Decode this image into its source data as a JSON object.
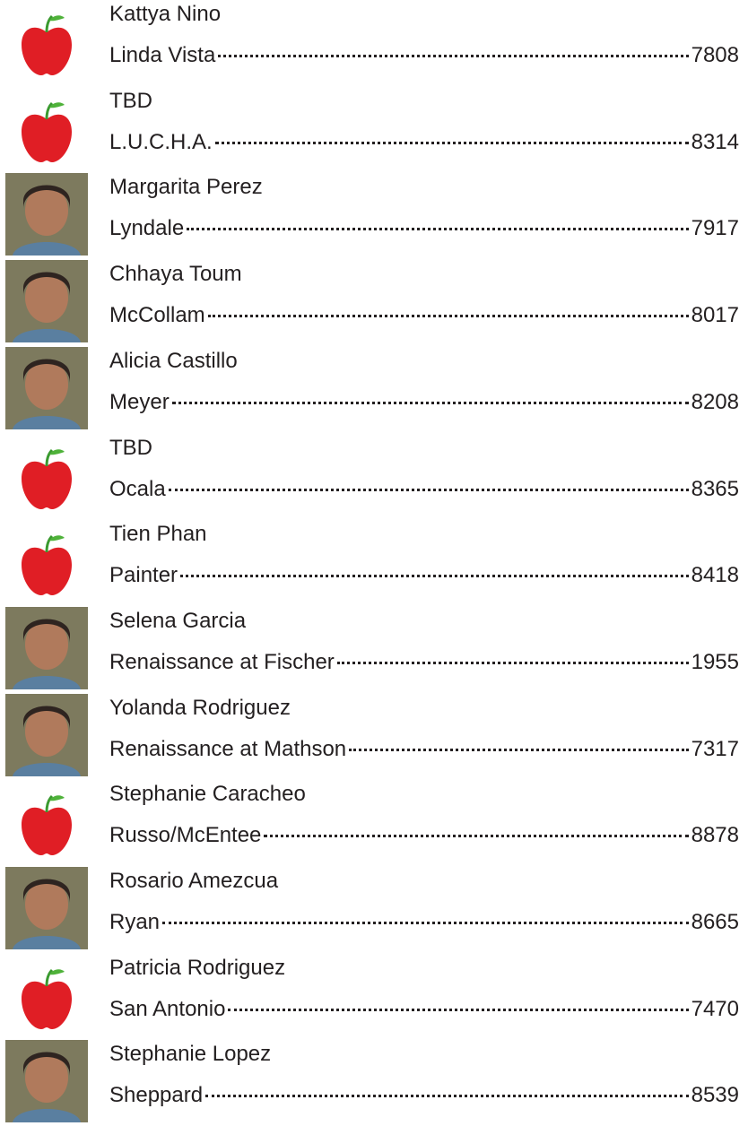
{
  "entries": [
    {
      "name": "Kattya Nino",
      "school": "Linda Vista",
      "ext": "7808"
    },
    {
      "name": "TBD",
      "school": "L.U.C.H.A.",
      "ext": "8314"
    },
    {
      "name": "Margarita Perez",
      "school": "Lyndale",
      "ext": "7917"
    },
    {
      "name": "Chhaya Toum",
      "school": "McCollam",
      "ext": "8017"
    },
    {
      "name": "Alicia Castillo",
      "school": "Meyer",
      "ext": "8208"
    },
    {
      "name": "TBD",
      "school": "Ocala",
      "ext": "8365"
    },
    {
      "name": "Tien Phan",
      "school": "Painter",
      "ext": "8418"
    },
    {
      "name": "Selena Garcia",
      "school": "Renaissance at Fischer",
      "ext": "1955"
    },
    {
      "name": "Yolanda Rodriguez",
      "school": "Renaissance at Mathson",
      "ext": "7317"
    },
    {
      "name": "Stephanie Caracheo",
      "school": "Russo/McEntee",
      "ext": "8878"
    },
    {
      "name": "Rosario Amezcua",
      "school": "Ryan",
      "ext": "8665"
    },
    {
      "name": "Patricia Rodriguez",
      "school": "San Antonio",
      "ext": "7470"
    },
    {
      "name": "Stephanie Lopez",
      "school": "Sheppard",
      "ext": "8539"
    }
  ]
}
